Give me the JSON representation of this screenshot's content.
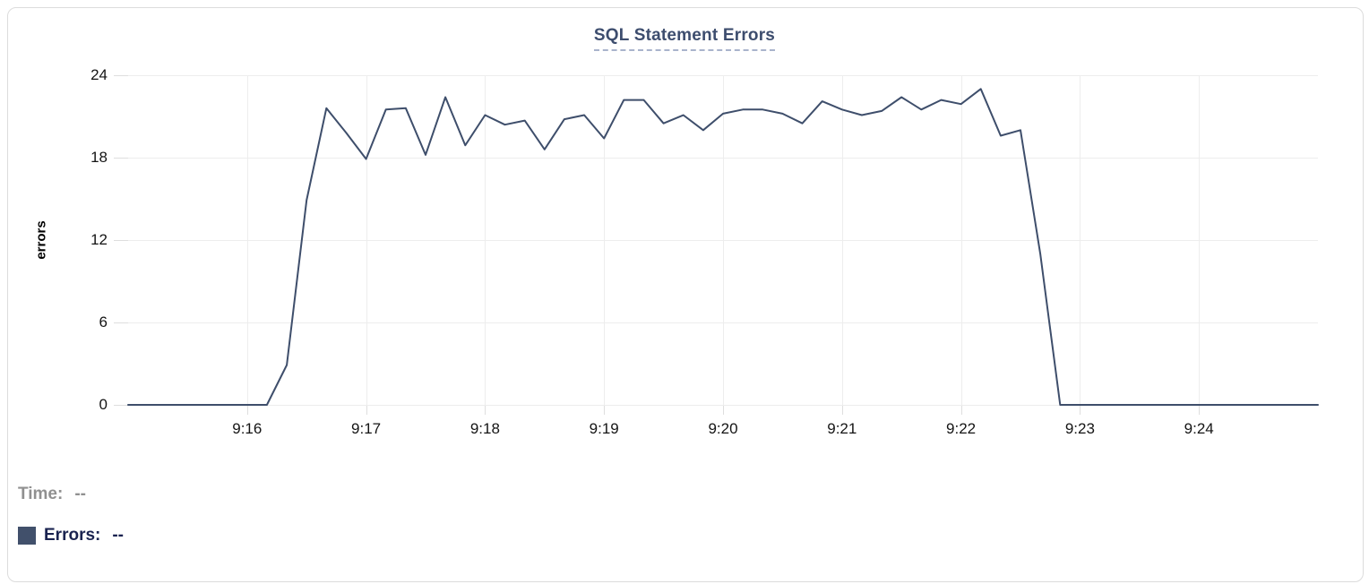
{
  "chart": {
    "title": "SQL Statement Errors",
    "ylabel": "errors"
  },
  "legend": {
    "time_label": "Time:",
    "time_value": "--",
    "errors_label": "Errors:",
    "errors_value": "--"
  },
  "colors": {
    "line": "#3e4e6b",
    "swatch": "#41506b",
    "title": "#3d4d6e",
    "title_underline": "#a9b4cc",
    "legend_time": "#909090",
    "legend_errors": "#1a2350",
    "gridline": "#ededed",
    "tick_mark": "#dedede",
    "tick_text": "#141414"
  },
  "chart_data": {
    "type": "line",
    "title": "SQL Statement Errors",
    "xlabel": "",
    "ylabel": "errors",
    "ylim": [
      0,
      24
    ],
    "yticks": [
      0,
      6,
      12,
      18,
      24
    ],
    "xticks": [
      "9:16",
      "9:17",
      "9:18",
      "9:19",
      "9:20",
      "9:21",
      "9:22",
      "9:23",
      "9:24"
    ],
    "x_range": [
      "9:15:00",
      "9:25:00"
    ],
    "grid": true,
    "legend_position": "bottom-left",
    "series": [
      {
        "name": "Errors",
        "x": [
          "9:15:00",
          "9:15:10",
          "9:15:20",
          "9:15:30",
          "9:15:40",
          "9:15:50",
          "9:16:00",
          "9:16:10",
          "9:16:20",
          "9:16:30",
          "9:16:40",
          "9:16:50",
          "9:17:00",
          "9:17:10",
          "9:17:20",
          "9:17:30",
          "9:17:40",
          "9:17:50",
          "9:18:00",
          "9:18:10",
          "9:18:20",
          "9:18:30",
          "9:18:40",
          "9:18:50",
          "9:19:00",
          "9:19:10",
          "9:19:20",
          "9:19:30",
          "9:19:40",
          "9:19:50",
          "9:20:00",
          "9:20:10",
          "9:20:20",
          "9:20:30",
          "9:20:40",
          "9:20:50",
          "9:21:00",
          "9:21:10",
          "9:21:20",
          "9:21:30",
          "9:21:40",
          "9:21:50",
          "9:22:00",
          "9:22:10",
          "9:22:20",
          "9:22:30",
          "9:22:40",
          "9:22:50",
          "9:23:00",
          "9:23:10",
          "9:23:20",
          "9:23:30",
          "9:23:40",
          "9:23:50",
          "9:24:00",
          "9:24:10",
          "9:24:20",
          "9:24:30",
          "9:24:40",
          "9:24:50",
          "9:25:00"
        ],
        "values": [
          0,
          0,
          0,
          0,
          0,
          0,
          0,
          0,
          2.9,
          14.9,
          21.6,
          19.8,
          17.9,
          21.5,
          21.6,
          18.2,
          22.4,
          18.9,
          21.1,
          20.4,
          20.7,
          18.6,
          20.8,
          21.1,
          19.4,
          22.2,
          22.2,
          20.5,
          21.1,
          20.0,
          21.2,
          21.5,
          21.5,
          21.2,
          20.5,
          22.1,
          21.5,
          21.1,
          21.4,
          22.4,
          21.5,
          22.2,
          21.9,
          23.0,
          19.6,
          20.0,
          11.0,
          0,
          0,
          0,
          0,
          0,
          0,
          0,
          0,
          0,
          0,
          0,
          0,
          0,
          0
        ]
      }
    ]
  }
}
